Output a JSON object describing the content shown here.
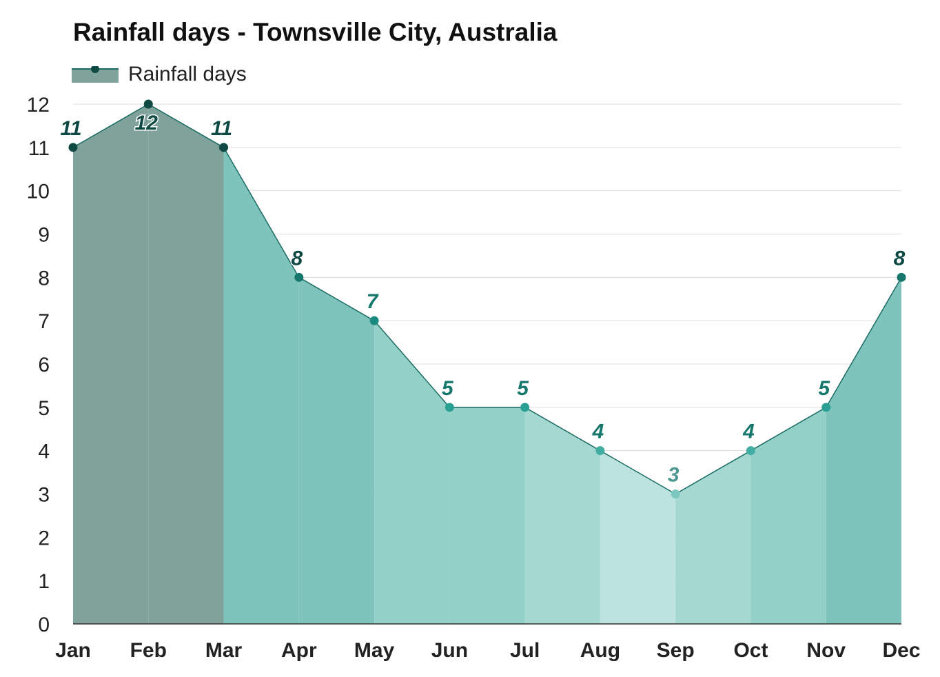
{
  "title": "Rainfall days - Townsville City, Australia",
  "legend": {
    "label": "Rainfall days",
    "position": "top-left"
  },
  "chart_data": {
    "type": "area",
    "title": "Rainfall days - Townsville City, Australia",
    "xlabel": "",
    "ylabel": "",
    "categories": [
      "Jan",
      "Feb",
      "Mar",
      "Apr",
      "May",
      "Jun",
      "Jul",
      "Aug",
      "Sep",
      "Oct",
      "Nov",
      "Dec"
    ],
    "series": [
      {
        "name": "Rainfall days",
        "values": [
          11,
          12,
          11,
          8,
          7,
          5,
          5,
          4,
          3,
          4,
          5,
          8
        ]
      }
    ],
    "ylim": [
      0,
      12
    ],
    "yticks": [
      0,
      1,
      2,
      3,
      4,
      5,
      6,
      7,
      8,
      9,
      10,
      11,
      12
    ],
    "grid": true,
    "data_labels": true
  },
  "colors": {
    "line": "#1a6b63",
    "legend_fill": "#7fa39b",
    "month_fills": [
      "#7fa39b",
      "#7fa39b",
      "#7fc4bc",
      "#7fc4bc",
      "#92d0c8",
      "#92d0c8",
      "#a6d8d2",
      "#bde3df",
      "#a6d8d2",
      "#92d0c8",
      "#7fc4bc",
      "#7fc4bc"
    ],
    "month_markers": [
      "#0e4a43",
      "#0e4a43",
      "#0e4a43",
      "#16776d",
      "#1b8a7f",
      "#2aa095",
      "#2aa095",
      "#42ada3",
      "#7cc8c0",
      "#42ada3",
      "#2aa095",
      "#16776d"
    ],
    "month_labels": [
      "#0e4a43",
      "#0e4a43",
      "#0e4a43",
      "#0e4a43",
      "#16776d",
      "#16776d",
      "#16776d",
      "#16776d",
      "#4e9690",
      "#16776d",
      "#16776d",
      "#0e4a43"
    ]
  }
}
